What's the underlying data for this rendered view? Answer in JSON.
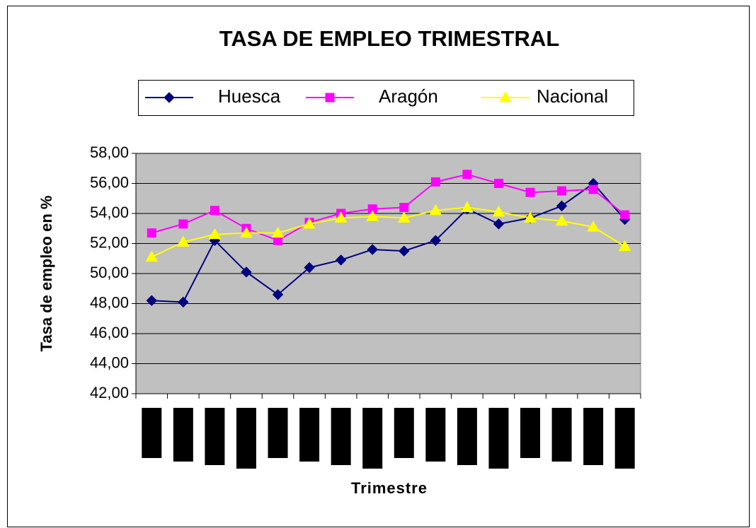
{
  "chart_data": {
    "type": "line",
    "title": "TASA DE EMPLEO TRIMESTRAL",
    "x_label": "Trimestre",
    "y_label": "Tasa de empleo en %",
    "categories": [
      null,
      null,
      null,
      null,
      null,
      null,
      null,
      null,
      null,
      null,
      null,
      null,
      null,
      null,
      null,
      null
    ],
    "series": [
      {
        "name": "Huesca",
        "color": "#000080",
        "marker": "diamond",
        "values": [
          48.2,
          48.1,
          52.2,
          50.1,
          48.6,
          50.4,
          50.9,
          51.6,
          51.5,
          52.2,
          54.3,
          53.3,
          53.7,
          54.5,
          56.0,
          53.6
        ]
      },
      {
        "name": "Aragón",
        "color": "#ff00ff",
        "marker": "square",
        "values": [
          52.7,
          53.3,
          54.2,
          53.0,
          52.2,
          53.4,
          54.0,
          54.3,
          54.4,
          56.1,
          56.6,
          56.0,
          55.4,
          55.5,
          55.6,
          53.9
        ]
      },
      {
        "name": "Nacional",
        "color": "#ffff00",
        "marker": "triangle",
        "values": [
          51.1,
          52.1,
          52.6,
          52.7,
          52.7,
          53.3,
          53.7,
          53.8,
          53.7,
          54.2,
          54.4,
          54.1,
          53.7,
          53.5,
          53.1,
          51.8
        ]
      }
    ],
    "ylim": [
      42,
      58
    ],
    "yticks": [
      {
        "value": 42,
        "label": "42,00"
      },
      {
        "value": 44,
        "label": "44,00"
      },
      {
        "value": 46,
        "label": "46,00"
      },
      {
        "value": 48,
        "label": "48,00"
      },
      {
        "value": 50,
        "label": "50,00"
      },
      {
        "value": 52,
        "label": "52,00"
      },
      {
        "value": 54,
        "label": "54,00"
      },
      {
        "value": 56,
        "label": "56,00"
      },
      {
        "value": 58,
        "label": "58,00"
      }
    ],
    "grid": true,
    "legend": "top",
    "plot_background": "#c0c0c0"
  }
}
